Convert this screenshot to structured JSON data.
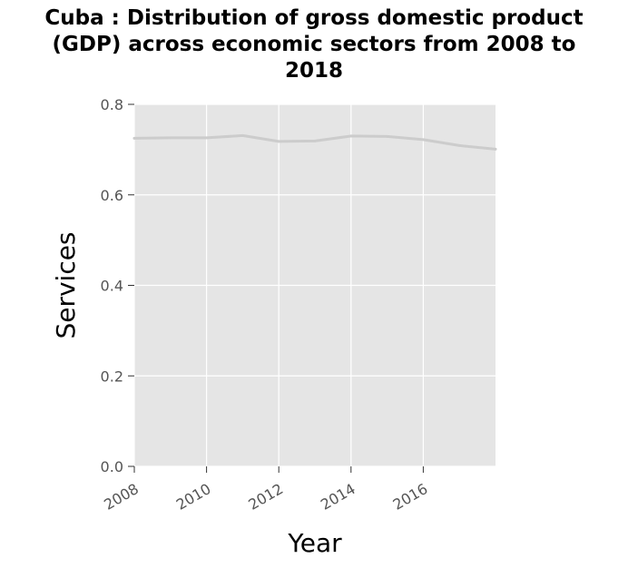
{
  "title": {
    "line1": "Cuba : Distribution of gross domestic product",
    "line2": "(GDP) across economic sectors from 2008 to",
    "line3": "2018"
  },
  "chart_data": {
    "type": "line",
    "title": "Cuba : Distribution of gross domestic product (GDP) across economic sectors from 2008 to 2018",
    "xlabel": "Year",
    "ylabel": "Services",
    "x": [
      2008,
      2009,
      2010,
      2011,
      2012,
      2013,
      2014,
      2015,
      2016,
      2017,
      2018
    ],
    "series": [
      {
        "values": [
          0.725,
          0.726,
          0.726,
          0.731,
          0.718,
          0.719,
          0.73,
          0.729,
          0.722,
          0.709,
          0.701
        ]
      }
    ],
    "xlim": [
      2008,
      2018
    ],
    "ylim": [
      0,
      0.8
    ],
    "x_ticks": [
      "2008",
      "2010",
      "2012",
      "2014",
      "2016"
    ],
    "y_ticks": [
      "0.0",
      "0.2",
      "0.4",
      "0.6",
      "0.8"
    ],
    "grid": true,
    "colors": {
      "panel": "#e5e5e5",
      "grid": "#ffffff",
      "line": "#cccccc"
    }
  }
}
